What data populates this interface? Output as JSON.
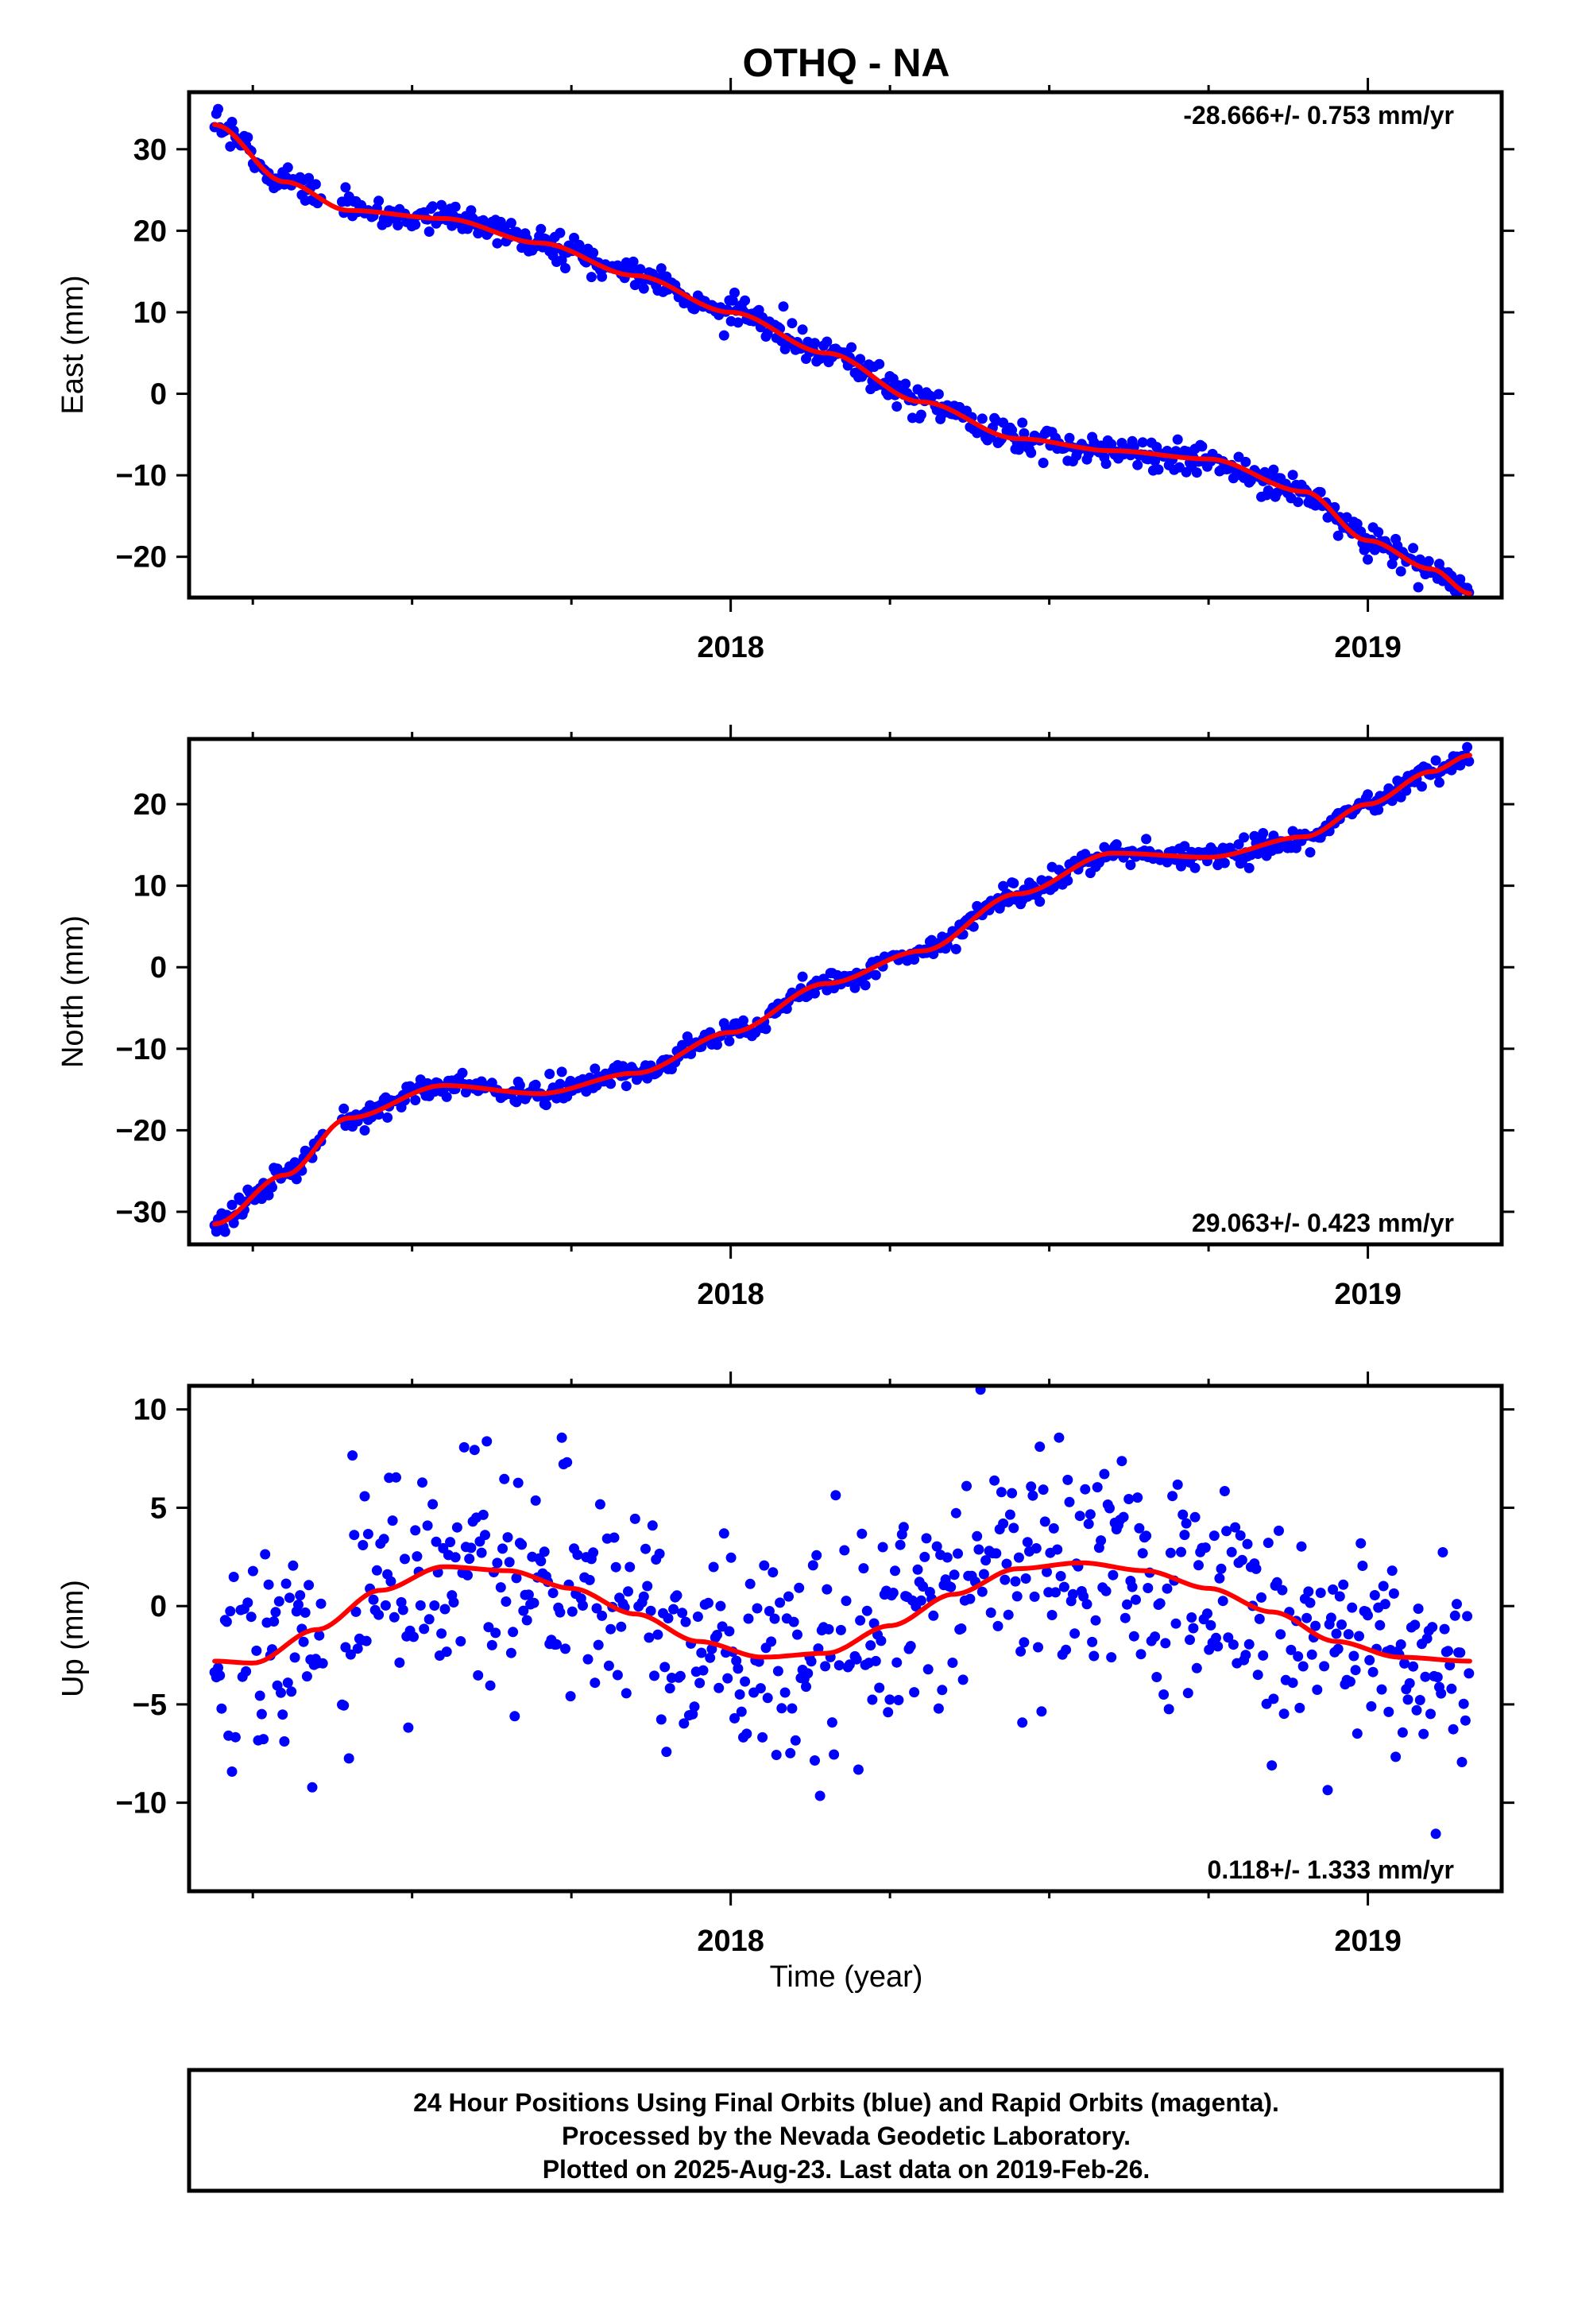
{
  "title": "OTHQ - NA",
  "xlabel": "Time (year)",
  "colors": {
    "final_orbits": "#0000ff",
    "model": "#ff0000",
    "frame": "#000000"
  },
  "footer": {
    "line1": "24 Hour Positions Using Final Orbits (blue) and Rapid Orbits (magenta).",
    "line2": "Processed by the Nevada Geodetic Laboratory.",
    "line3": "Plotted on 2025-Aug-23. Last data on 2019-Feb-26."
  },
  "chart_data": [
    {
      "type": "scatter",
      "name": "east",
      "ylabel": "East (mm)",
      "rate_label": "-28.666+/- 0.753 mm/yr",
      "rate_position": "top-right",
      "xlim": [
        2017.15,
        2019.21
      ],
      "ylim": [
        -25,
        37
      ],
      "x_ticks": [
        2018,
        2019
      ],
      "y_ticks": [
        -20,
        -10,
        0,
        10,
        20,
        30
      ],
      "y_tick_labels": [
        "−20",
        "−10",
        "0",
        "10",
        "20",
        "30"
      ],
      "x_tick_labels": [
        "2018",
        "2019"
      ],
      "model": {
        "x": [
          2017.19,
          2017.3,
          2017.4,
          2017.55,
          2017.7,
          2017.85,
          2018.0,
          2018.15,
          2018.3,
          2018.45,
          2018.6,
          2018.75,
          2018.9,
          2019.0,
          2019.1,
          2019.16
        ],
        "y": [
          33,
          26,
          22.5,
          21.5,
          18.5,
          14.5,
          10,
          5,
          -1,
          -5.5,
          -7,
          -8,
          -12,
          -18,
          -21.5,
          -24.5
        ]
      },
      "observations": {
        "segments": [
          [
            2017.19,
            2017.36
          ],
          [
            2017.39,
            2019.16
          ]
        ],
        "scatter_sd": 0.9,
        "seed": 7
      }
    },
    {
      "type": "scatter",
      "name": "north",
      "ylabel": "North (mm)",
      "rate_label": "29.063+/- 0.423 mm/yr",
      "rate_position": "bottom-right",
      "xlim": [
        2017.15,
        2019.21
      ],
      "ylim": [
        -34,
        28
      ],
      "x_ticks": [
        2018,
        2019
      ],
      "y_ticks": [
        -30,
        -20,
        -10,
        0,
        10,
        20
      ],
      "y_tick_labels": [
        "−30",
        "−20",
        "−10",
        "0",
        "10",
        "20"
      ],
      "x_tick_labels": [
        "2018",
        "2019"
      ],
      "model": {
        "x": [
          2017.19,
          2017.3,
          2017.4,
          2017.55,
          2017.7,
          2017.85,
          2018.0,
          2018.15,
          2018.3,
          2018.45,
          2018.6,
          2018.75,
          2018.9,
          2019.0,
          2019.1,
          2019.16
        ],
        "y": [
          -31.5,
          -25.5,
          -18.5,
          -14.5,
          -15.5,
          -13,
          -8,
          -2,
          2,
          9,
          14,
          13.5,
          16,
          20,
          24,
          26
        ]
      },
      "observations": {
        "segments": [
          [
            2017.19,
            2017.36
          ],
          [
            2017.39,
            2019.16
          ]
        ],
        "scatter_sd": 0.7,
        "seed": 13
      }
    },
    {
      "type": "scatter",
      "name": "up",
      "ylabel": "Up (mm)",
      "rate_label": "0.118+/- 1.333 mm/yr",
      "rate_position": "bottom-right",
      "xlim": [
        2017.15,
        2019.21
      ],
      "ylim": [
        -14.5,
        11.2
      ],
      "x_ticks": [
        2018,
        2019
      ],
      "y_ticks": [
        -10,
        -5,
        0,
        5,
        10
      ],
      "y_tick_labels": [
        "−10",
        "−5",
        "0",
        "5",
        "10"
      ],
      "x_tick_labels": [
        "2018",
        "2019"
      ],
      "model": {
        "x": [
          2017.19,
          2017.25,
          2017.35,
          2017.45,
          2017.55,
          2017.65,
          2017.75,
          2017.85,
          2017.95,
          2018.05,
          2018.15,
          2018.25,
          2018.35,
          2018.45,
          2018.55,
          2018.65,
          2018.75,
          2018.85,
          2018.95,
          2019.05,
          2019.16
        ],
        "y": [
          -2.8,
          -2.9,
          -1.2,
          0.8,
          2.0,
          1.8,
          0.9,
          -0.4,
          -1.8,
          -2.6,
          -2.4,
          -1.0,
          0.6,
          1.9,
          2.2,
          1.8,
          0.9,
          -0.3,
          -1.8,
          -2.6,
          -2.8
        ]
      },
      "observations": {
        "segments": [
          [
            2017.19,
            2017.36
          ],
          [
            2017.39,
            2019.16
          ]
        ],
        "scatter_sd": 2.9,
        "seed": 29
      }
    }
  ]
}
